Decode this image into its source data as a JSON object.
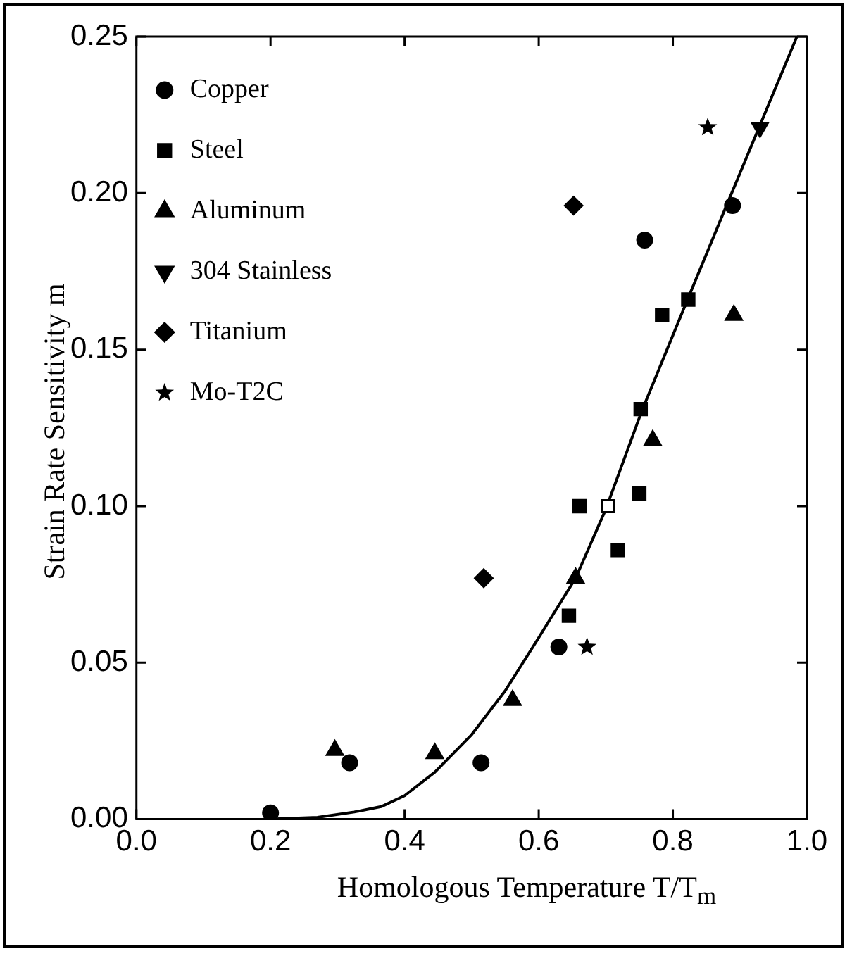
{
  "chart_data": {
    "type": "scatter",
    "xlabel": "Homologous Temperature T/T$_{m}$",
    "ylabel": "Strain Rate Sensitivity m",
    "xlim": [
      0.0,
      1.0
    ],
    "xticks": [
      {
        "value": 0,
        "label": "0.0"
      },
      0.2,
      0.4,
      0.6,
      0.8,
      {
        "value": 1,
        "label": "1.0"
      }
    ],
    "ylim": [
      0.0,
      0.25
    ],
    "yticks": [
      {
        "value": 0,
        "label": "0.00"
      },
      0.05,
      {
        "value": 0.1,
        "label": "0.10"
      },
      0.15,
      {
        "value": 0.2,
        "label": "0.20"
      },
      0.25
    ],
    "legend": "top left",
    "grid": false,
    "series": [
      {
        "name": "Copper",
        "color": "#000000",
        "marker": "circle",
        "x": [
          0.2,
          0.318,
          0.514,
          0.63,
          0.758,
          0.889
        ],
        "values": [
          0.002,
          0.018,
          0.018,
          0.055,
          0.185,
          0.196
        ]
      },
      {
        "name": "Steel",
        "color": "#000000",
        "marker": "square",
        "x": [
          0.645,
          0.661,
          0.718,
          0.75,
          0.752,
          0.784,
          0.823
        ],
        "values": [
          0.065,
          0.1,
          0.086,
          0.104,
          0.131,
          0.161,
          0.166
        ]
      },
      {
        "name": "Aluminum",
        "color": "#000000",
        "marker": "triangle",
        "x": [
          0.296,
          0.445,
          0.561,
          0.655,
          0.77,
          0.891
        ],
        "values": [
          0.022,
          0.021,
          0.038,
          0.077,
          0.121,
          0.161
        ]
      },
      {
        "name": "304 Stainless",
        "color": "#000000",
        "marker": "triangle-down",
        "x": [
          0.93
        ],
        "values": [
          0.221
        ]
      },
      {
        "name": "Titanium",
        "color": "#000000",
        "marker": "diamond",
        "x": [
          0.518,
          0.652
        ],
        "values": [
          0.077,
          0.196
        ]
      },
      {
        "color": "#000000",
        "marker": "square-open",
        "x": [
          0.703
        ],
        "values": [
          0.1
        ]
      },
      {
        "name": "Mo-T2C",
        "color": "#000000",
        "marker": "star",
        "x": [
          0.672,
          0.852
        ],
        "values": [
          0.055,
          0.221
        ]
      },
      {
        "type": "line",
        "color": "#000000",
        "marker": "none",
        "line_style": "solid",
        "x": [
          0.2,
          0.27,
          0.325,
          0.365,
          0.4,
          0.445,
          0.5,
          0.55,
          0.6,
          0.655,
          0.7,
          0.753,
          0.82,
          0.88,
          0.985
        ],
        "values": [
          0,
          0.0006,
          0.0023,
          0.004,
          0.0075,
          0.015,
          0.027,
          0.041,
          0.058,
          0.077,
          0.099,
          0.13,
          0.165,
          0.196,
          0.25
        ]
      }
    ]
  }
}
